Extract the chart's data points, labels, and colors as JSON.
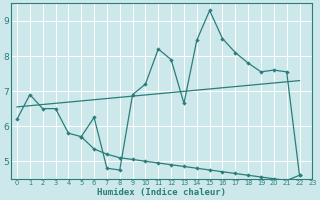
{
  "xlabel": "Humidex (Indice chaleur)",
  "background_color": "#cde8eb",
  "grid_color": "#ffffff",
  "line_color": "#2a7d7a",
  "xlim": [
    -0.5,
    22.5
  ],
  "ylim": [
    4.5,
    9.5
  ],
  "xticks": [
    0,
    1,
    2,
    3,
    4,
    5,
    6,
    7,
    8,
    9,
    10,
    11,
    12,
    13,
    14,
    15,
    16,
    17,
    18,
    19,
    20,
    21,
    22,
    23
  ],
  "yticks": [
    5,
    6,
    7,
    8,
    9
  ],
  "line1_y": [
    6.2,
    6.9,
    6.5,
    6.5,
    5.8,
    5.7,
    6.25,
    4.8,
    4.75,
    6.9,
    7.2,
    8.2,
    7.9,
    6.65,
    8.45,
    9.3,
    8.5,
    8.1,
    7.8,
    7.55,
    7.6,
    7.55,
    4.6
  ],
  "line2_y": [
    null,
    null,
    null,
    null,
    null,
    5.7,
    5.35,
    5.2,
    5.1,
    5.05,
    5.0,
    4.95,
    4.9,
    4.85,
    4.8,
    4.75,
    4.7,
    4.65,
    4.6,
    4.55,
    4.5,
    4.45,
    4.6
  ],
  "line3_x": [
    0,
    22
  ],
  "line3_y": [
    6.55,
    7.3
  ]
}
